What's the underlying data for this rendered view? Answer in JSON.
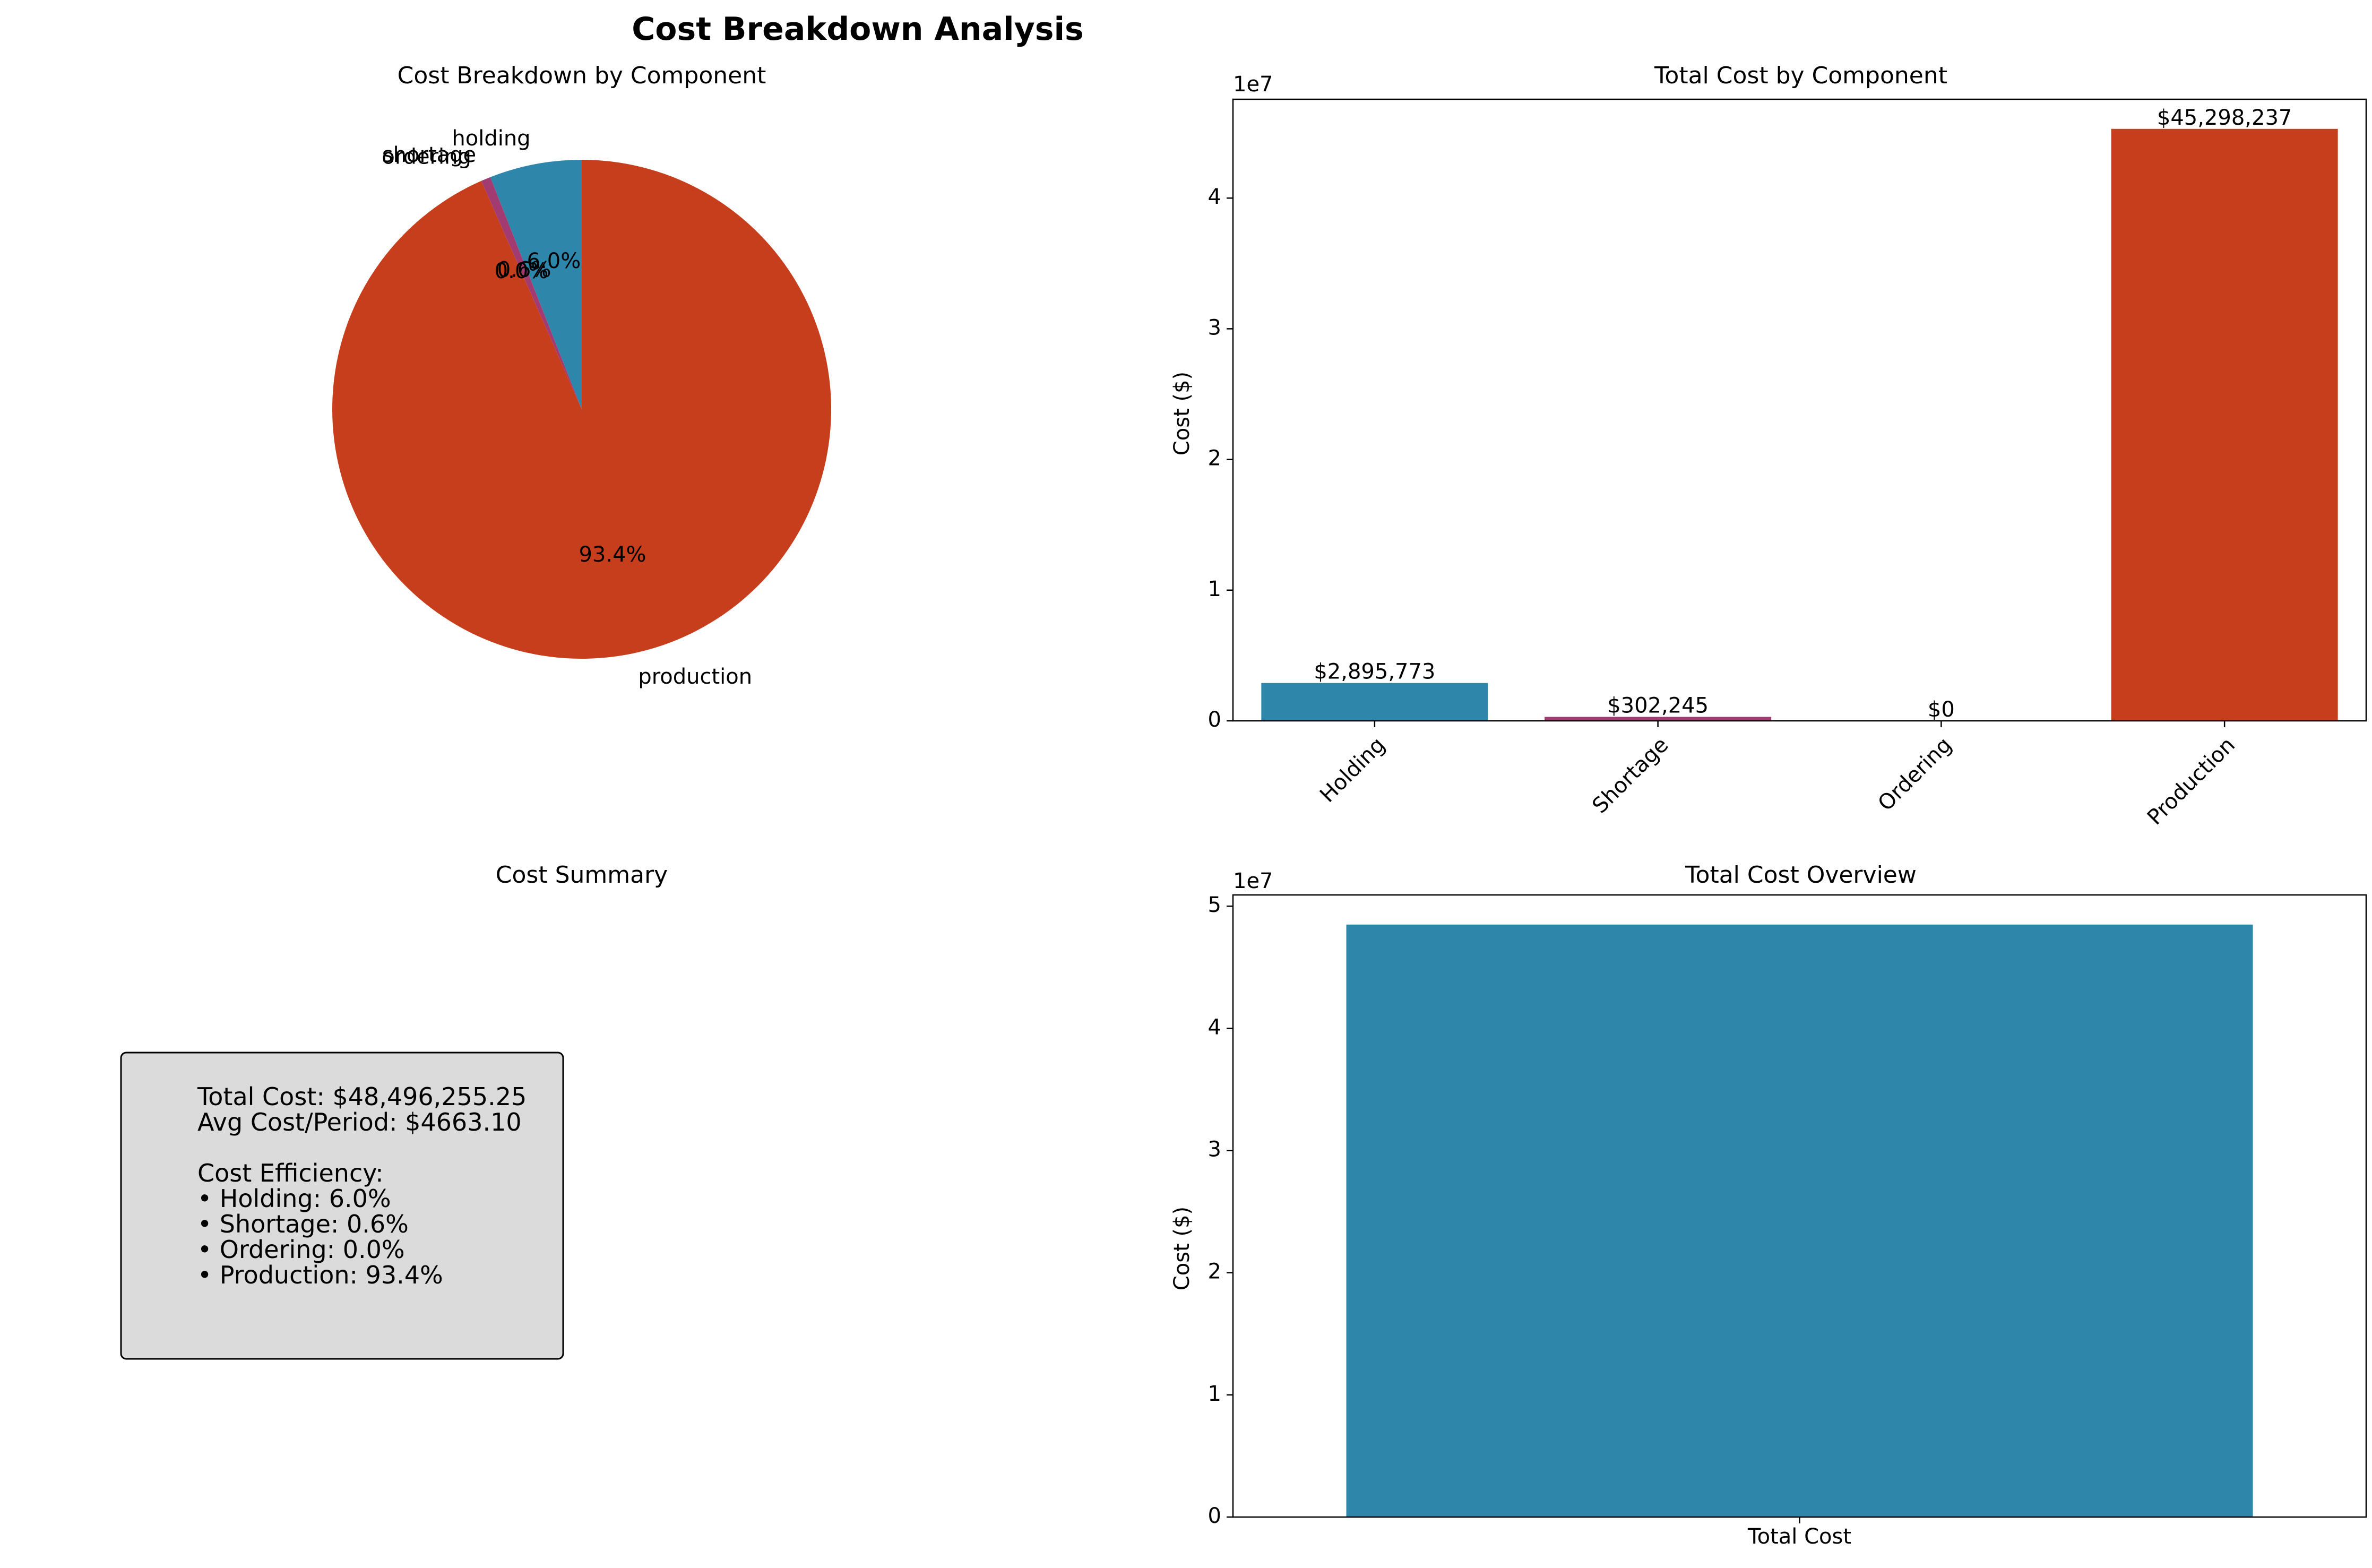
{
  "title": "Cost Breakdown Analysis",
  "colors": {
    "holding": "#2e86ab",
    "shortage": "#a23b72",
    "ordering": "#f18f01",
    "production": "#c73e1d",
    "summary_box": "#dbdbdb"
  },
  "pie": {
    "title": "Cost Breakdown by Component",
    "slices": [
      {
        "label": "holding",
        "value": 2895773,
        "pct_label": "6.0%"
      },
      {
        "label": "shortage",
        "value": 302245,
        "pct_label": "0.6%"
      },
      {
        "label": "ordering",
        "value": 0,
        "pct_label": "0.0%"
      },
      {
        "label": "production",
        "value": 45298237,
        "pct_label": "93.4%"
      }
    ]
  },
  "summary": {
    "title": "Cost Summary",
    "lines": [
      "Total Cost: $48,496,255.25",
      "Avg Cost/Period: $4663.10",
      "",
      "Cost Efficiency:",
      "• Holding: 6.0%",
      "• Shortage: 0.6%",
      "• Ordering: 0.0%",
      "• Production: 93.4%"
    ]
  },
  "chart_data": [
    {
      "type": "pie",
      "title": "Cost Breakdown by Component",
      "categories": [
        "holding",
        "shortage",
        "ordering",
        "production"
      ],
      "values": [
        2895773,
        302245,
        0,
        45298237
      ],
      "pct_labels": [
        "6.0%",
        "0.6%",
        "0.0%",
        "93.4%"
      ]
    },
    {
      "type": "bar",
      "title": "Total Cost by Component",
      "categories": [
        "Holding",
        "Shortage",
        "Ordering",
        "Production"
      ],
      "values": [
        2895773,
        302245,
        0,
        45298237
      ],
      "value_labels": [
        "$2,895,773",
        "$302,245",
        "$0",
        "$45,298,237"
      ],
      "xlabel": "",
      "ylabel": "Cost ($)",
      "offset_label": "1e7",
      "ylim": [
        0,
        47563149
      ],
      "yticks": [
        0,
        10000000,
        20000000,
        30000000,
        40000000
      ],
      "ytick_labels": [
        "0",
        "1",
        "2",
        "3",
        "4"
      ]
    },
    {
      "type": "bar",
      "title": "Total Cost Overview",
      "categories": [
        "Total Cost"
      ],
      "values": [
        48496255.25
      ],
      "xlabel": "",
      "ylabel": "Cost ($)",
      "offset_label": "1e7",
      "ylim": [
        0,
        50921068
      ],
      "yticks": [
        0,
        10000000,
        20000000,
        30000000,
        40000000,
        50000000
      ],
      "ytick_labels": [
        "0",
        "1",
        "2",
        "3",
        "4",
        "5"
      ]
    }
  ]
}
